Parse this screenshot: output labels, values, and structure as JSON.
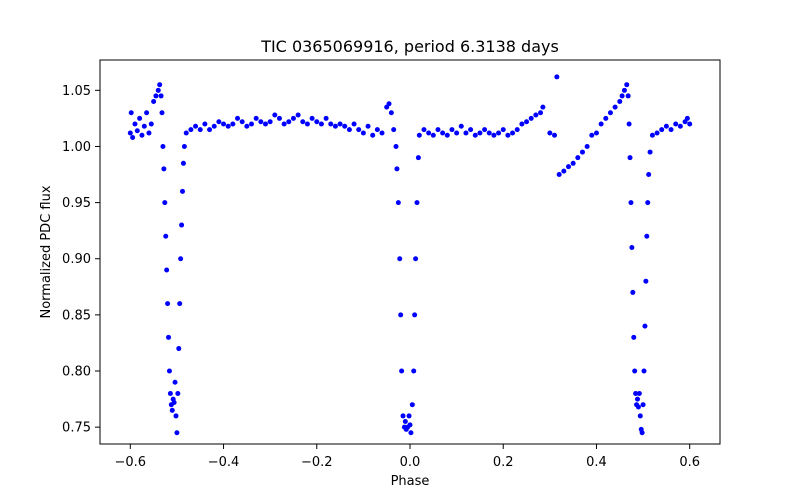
{
  "chart_data": {
    "type": "scatter",
    "title": "TIC 0365069916, period 6.3138 days",
    "xlabel": "Phase",
    "ylabel": "Normalized PDC flux",
    "xlim": [
      -0.665,
      0.665
    ],
    "ylim": [
      0.735,
      1.077
    ],
    "xticks": [
      -0.6,
      -0.4,
      -0.2,
      0.0,
      0.2,
      0.4,
      0.6
    ],
    "xtick_labels": [
      "−0.6",
      "−0.4",
      "−0.2",
      "0.0",
      "0.2",
      "0.4",
      "0.6"
    ],
    "yticks": [
      0.75,
      0.8,
      0.85,
      0.9,
      0.95,
      1.0,
      1.05
    ],
    "ytick_labels": [
      "0.75",
      "0.80",
      "0.85",
      "0.90",
      "0.95",
      "1.00",
      "1.05"
    ],
    "marker_color": "#0000ff",
    "grid": false,
    "series": [
      {
        "points": [
          [
            -0.6,
            1.012
          ],
          [
            -0.598,
            1.03
          ],
          [
            -0.595,
            1.008
          ],
          [
            -0.59,
            1.02
          ],
          [
            -0.585,
            1.014
          ],
          [
            -0.58,
            1.025
          ],
          [
            -0.575,
            1.01
          ],
          [
            -0.57,
            1.018
          ],
          [
            -0.565,
            1.03
          ],
          [
            -0.56,
            1.012
          ],
          [
            -0.555,
            1.02
          ],
          [
            -0.55,
            1.04
          ],
          [
            -0.545,
            1.045
          ],
          [
            -0.54,
            1.05
          ],
          [
            -0.537,
            1.055
          ],
          [
            -0.534,
            1.045
          ],
          [
            -0.532,
            1.03
          ],
          [
            -0.53,
            1.0
          ],
          [
            -0.528,
            0.98
          ],
          [
            -0.526,
            0.95
          ],
          [
            -0.524,
            0.92
          ],
          [
            -0.522,
            0.89
          ],
          [
            -0.52,
            0.86
          ],
          [
            -0.518,
            0.83
          ],
          [
            -0.516,
            0.8
          ],
          [
            -0.514,
            0.78
          ],
          [
            -0.512,
            0.77
          ],
          [
            -0.51,
            0.765
          ],
          [
            -0.508,
            0.775
          ],
          [
            -0.506,
            0.772
          ],
          [
            -0.504,
            0.79
          ],
          [
            -0.502,
            0.76
          ],
          [
            -0.5,
            0.745
          ],
          [
            -0.498,
            0.78
          ],
          [
            -0.496,
            0.82
          ],
          [
            -0.494,
            0.86
          ],
          [
            -0.492,
            0.9
          ],
          [
            -0.49,
            0.93
          ],
          [
            -0.488,
            0.96
          ],
          [
            -0.486,
            0.985
          ],
          [
            -0.484,
            1.0
          ],
          [
            -0.48,
            1.012
          ],
          [
            -0.47,
            1.015
          ],
          [
            -0.46,
            1.018
          ],
          [
            -0.45,
            1.015
          ],
          [
            -0.44,
            1.02
          ],
          [
            -0.43,
            1.015
          ],
          [
            -0.42,
            1.018
          ],
          [
            -0.41,
            1.022
          ],
          [
            -0.4,
            1.02
          ],
          [
            -0.39,
            1.018
          ],
          [
            -0.38,
            1.02
          ],
          [
            -0.37,
            1.025
          ],
          [
            -0.36,
            1.022
          ],
          [
            -0.35,
            1.018
          ],
          [
            -0.34,
            1.02
          ],
          [
            -0.33,
            1.025
          ],
          [
            -0.32,
            1.022
          ],
          [
            -0.31,
            1.02
          ],
          [
            -0.3,
            1.022
          ],
          [
            -0.29,
            1.028
          ],
          [
            -0.28,
            1.025
          ],
          [
            -0.27,
            1.02
          ],
          [
            -0.26,
            1.022
          ],
          [
            -0.25,
            1.025
          ],
          [
            -0.24,
            1.028
          ],
          [
            -0.23,
            1.022
          ],
          [
            -0.22,
            1.02
          ],
          [
            -0.21,
            1.025
          ],
          [
            -0.2,
            1.022
          ],
          [
            -0.19,
            1.02
          ],
          [
            -0.18,
            1.025
          ],
          [
            -0.17,
            1.02
          ],
          [
            -0.16,
            1.018
          ],
          [
            -0.15,
            1.02
          ],
          [
            -0.14,
            1.018
          ],
          [
            -0.13,
            1.015
          ],
          [
            -0.12,
            1.02
          ],
          [
            -0.11,
            1.015
          ],
          [
            -0.1,
            1.012
          ],
          [
            -0.09,
            1.018
          ],
          [
            -0.08,
            1.01
          ],
          [
            -0.07,
            1.015
          ],
          [
            -0.06,
            1.012
          ],
          [
            -0.05,
            1.035
          ],
          [
            -0.045,
            1.038
          ],
          [
            -0.04,
            1.03
          ],
          [
            -0.035,
            1.015
          ],
          [
            -0.03,
            1.0
          ],
          [
            -0.028,
            0.98
          ],
          [
            -0.025,
            0.95
          ],
          [
            -0.022,
            0.9
          ],
          [
            -0.02,
            0.85
          ],
          [
            -0.018,
            0.8
          ],
          [
            -0.015,
            0.76
          ],
          [
            -0.012,
            0.75
          ],
          [
            -0.01,
            0.755
          ],
          [
            -0.008,
            0.748
          ],
          [
            -0.005,
            0.75
          ],
          [
            -0.002,
            0.76
          ],
          [
            0.0,
            0.752
          ],
          [
            0.002,
            0.745
          ],
          [
            0.005,
            0.77
          ],
          [
            0.008,
            0.8
          ],
          [
            0.01,
            0.85
          ],
          [
            0.012,
            0.9
          ],
          [
            0.015,
            0.95
          ],
          [
            0.018,
            0.99
          ],
          [
            0.02,
            1.01
          ],
          [
            0.03,
            1.015
          ],
          [
            0.04,
            1.012
          ],
          [
            0.05,
            1.01
          ],
          [
            0.06,
            1.015
          ],
          [
            0.07,
            1.012
          ],
          [
            0.08,
            1.01
          ],
          [
            0.09,
            1.015
          ],
          [
            0.1,
            1.012
          ],
          [
            0.11,
            1.018
          ],
          [
            0.12,
            1.012
          ],
          [
            0.13,
            1.015
          ],
          [
            0.14,
            1.01
          ],
          [
            0.15,
            1.012
          ],
          [
            0.16,
            1.015
          ],
          [
            0.17,
            1.012
          ],
          [
            0.18,
            1.01
          ],
          [
            0.19,
            1.012
          ],
          [
            0.2,
            1.015
          ],
          [
            0.21,
            1.01
          ],
          [
            0.22,
            1.012
          ],
          [
            0.23,
            1.015
          ],
          [
            0.24,
            1.02
          ],
          [
            0.25,
            1.022
          ],
          [
            0.26,
            1.025
          ],
          [
            0.27,
            1.028
          ],
          [
            0.28,
            1.03
          ],
          [
            0.285,
            1.035
          ],
          [
            0.3,
            1.012
          ],
          [
            0.31,
            1.01
          ],
          [
            0.315,
            1.062
          ],
          [
            0.32,
            0.975
          ],
          [
            0.33,
            0.978
          ],
          [
            0.34,
            0.982
          ],
          [
            0.35,
            0.985
          ],
          [
            0.36,
            0.99
          ],
          [
            0.37,
            0.995
          ],
          [
            0.38,
            1.0
          ],
          [
            0.39,
            1.01
          ],
          [
            0.4,
            1.012
          ],
          [
            0.41,
            1.02
          ],
          [
            0.42,
            1.025
          ],
          [
            0.43,
            1.03
          ],
          [
            0.44,
            1.035
          ],
          [
            0.45,
            1.04
          ],
          [
            0.455,
            1.045
          ],
          [
            0.46,
            1.05
          ],
          [
            0.465,
            1.055
          ],
          [
            0.468,
            1.045
          ],
          [
            0.47,
            1.02
          ],
          [
            0.472,
            0.99
          ],
          [
            0.474,
            0.95
          ],
          [
            0.476,
            0.91
          ],
          [
            0.478,
            0.87
          ],
          [
            0.48,
            0.83
          ],
          [
            0.482,
            0.8
          ],
          [
            0.484,
            0.78
          ],
          [
            0.486,
            0.77
          ],
          [
            0.488,
            0.775
          ],
          [
            0.49,
            0.768
          ],
          [
            0.492,
            0.78
          ],
          [
            0.494,
            0.76
          ],
          [
            0.496,
            0.748
          ],
          [
            0.498,
            0.745
          ],
          [
            0.5,
            0.77
          ],
          [
            0.502,
            0.8
          ],
          [
            0.504,
            0.84
          ],
          [
            0.506,
            0.88
          ],
          [
            0.508,
            0.92
          ],
          [
            0.51,
            0.95
          ],
          [
            0.512,
            0.975
          ],
          [
            0.515,
            0.995
          ],
          [
            0.52,
            1.01
          ],
          [
            0.53,
            1.012
          ],
          [
            0.54,
            1.015
          ],
          [
            0.55,
            1.018
          ],
          [
            0.56,
            1.015
          ],
          [
            0.57,
            1.02
          ],
          [
            0.58,
            1.018
          ],
          [
            0.59,
            1.022
          ],
          [
            0.595,
            1.025
          ],
          [
            0.6,
            1.02
          ]
        ]
      }
    ]
  }
}
